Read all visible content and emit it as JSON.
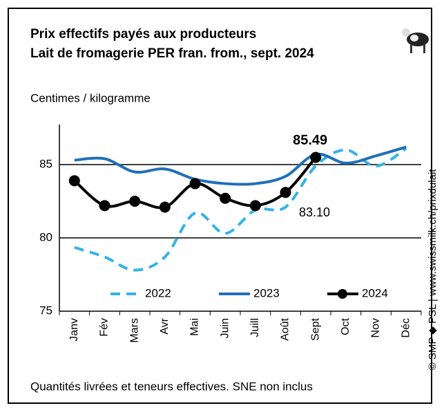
{
  "chart_data": {
    "type": "line",
    "title": [
      "Prix effectifs payés aux producteurs",
      "Lait de fromagerie PER fran. from., sept. 2024"
    ],
    "y_label": "Centimes / kilogramme",
    "note": "Quantités livrées et teneurs effectives.  SNE non inclus",
    "source": "© SMP ◆ PSL | www.swissmilk.ch/prixdulait",
    "categories": [
      "Janv",
      "Fév",
      "Mars",
      "Avr",
      "Mai",
      "Juin",
      "Juill",
      "Août",
      "Sept",
      "Oct",
      "Nov",
      "Déc"
    ],
    "series": [
      {
        "name": "2022",
        "color": "#33b3e6",
        "dash": true,
        "values": [
          79.35,
          78.7,
          77.8,
          78.7,
          81.7,
          80.3,
          81.9,
          82.1,
          84.9,
          86.0,
          84.9,
          86.1
        ]
      },
      {
        "name": "2023",
        "color": "#1f6fb8",
        "values": [
          85.3,
          85.4,
          84.5,
          84.7,
          84.0,
          83.7,
          83.7,
          84.2,
          85.7,
          85.1,
          85.6,
          86.2
        ]
      },
      {
        "name": "2024",
        "color": "#000000",
        "markers": true,
        "values": [
          83.9,
          82.2,
          82.5,
          82.1,
          83.7,
          82.7,
          82.2,
          83.1,
          85.49,
          null,
          null,
          null
        ],
        "value_labels": [
          null,
          null,
          null,
          null,
          null,
          null,
          null,
          "83.10",
          "85.49",
          null,
          null,
          null
        ]
      }
    ],
    "ylim": [
      75,
      87.5
    ],
    "yticks": [
      75,
      80,
      85
    ],
    "grid": true
  }
}
